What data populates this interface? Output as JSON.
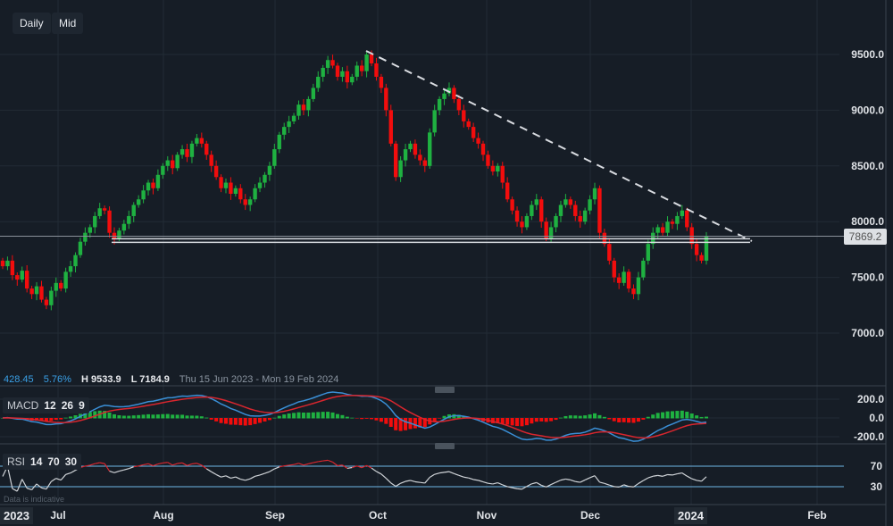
{
  "toolbar": {
    "daily_label": "Daily",
    "mid_label": "Mid"
  },
  "info": {
    "change": "428.45",
    "change_pct": "5.76%",
    "high": "H 9533.9",
    "low": "L 7184.9",
    "range": "Thu 15 Jun 2023 - Mon 19 Feb 2024"
  },
  "macd": {
    "name": "MACD",
    "params": [
      "12",
      "26",
      "9"
    ],
    "close": "✕"
  },
  "rsi": {
    "name": "RSI",
    "params": [
      "14",
      "70",
      "30"
    ],
    "close": "✕"
  },
  "note": "Data is indicative",
  "price_tag": "7869.2",
  "colors": {
    "up": "#1fb141",
    "down": "#f20d0d",
    "macd": "#3a8fd6",
    "signal": "#d8262e",
    "rsi": "#d0d4d8",
    "bg": "#161d26"
  },
  "chart_data": {
    "type": "candlestick",
    "x_tick_labels": [
      "2023",
      "Jul",
      "Aug",
      "Sep",
      "Oct",
      "Nov",
      "Dec",
      "2024",
      "Feb"
    ],
    "y_tick_labels": [
      "9500.0",
      "9000.0",
      "8500.0",
      "8000.0",
      "7500.0",
      "7000.0"
    ],
    "y_ticks": [
      9500,
      9000,
      8500,
      8000,
      7500,
      7000
    ],
    "macd_tick_labels": [
      "200.0",
      "0.0",
      "-200.0"
    ],
    "rsi_tick_labels": [
      "70",
      "30"
    ],
    "start": "2023-06-15",
    "last_price": 7869.2,
    "support_level": 7830,
    "trendline": {
      "from": [
        "2023-09-27",
        9530
      ],
      "to": [
        "2024-01-16",
        7830
      ]
    },
    "closes": [
      7600,
      7650,
      7520,
      7480,
      7560,
      7400,
      7350,
      7420,
      7300,
      7250,
      7380,
      7450,
      7400,
      7550,
      7600,
      7700,
      7820,
      7900,
      7950,
      8050,
      8120,
      8100,
      7900,
      7850,
      7920,
      7980,
      8050,
      8150,
      8200,
      8280,
      8350,
      8300,
      8420,
      8500,
      8550,
      8480,
      8600,
      8650,
      8580,
      8700,
      8750,
      8700,
      8600,
      8500,
      8400,
      8300,
      8350,
      8250,
      8300,
      8200,
      8150,
      8200,
      8300,
      8350,
      8420,
      8500,
      8650,
      8780,
      8850,
      8900,
      8950,
      9050,
      9000,
      9100,
      9200,
      9300,
      9380,
      9450,
      9400,
      9300,
      9350,
      9250,
      9300,
      9400,
      9350,
      9500,
      9420,
      9300,
      9200,
      9000,
      8700,
      8400,
      8550,
      8650,
      8700,
      8600,
      8550,
      8500,
      8800,
      9000,
      9100,
      9150,
      9200,
      9100,
      9000,
      8900,
      8850,
      8750,
      8700,
      8600,
      8500,
      8450,
      8500,
      8350,
      8200,
      8100,
      8000,
      7950,
      8050,
      8150,
      8200,
      8000,
      7850,
      7950,
      8050,
      8150,
      8200,
      8150,
      8050,
      8000,
      8100,
      8200,
      8300,
      7900,
      7800,
      7650,
      7500,
      7450,
      7550,
      7400,
      7350,
      7500,
      7650,
      7800,
      7900,
      7950,
      7900,
      8000,
      7980,
      8050,
      8100,
      7950,
      7800,
      7700,
      7650,
      7869
    ]
  }
}
